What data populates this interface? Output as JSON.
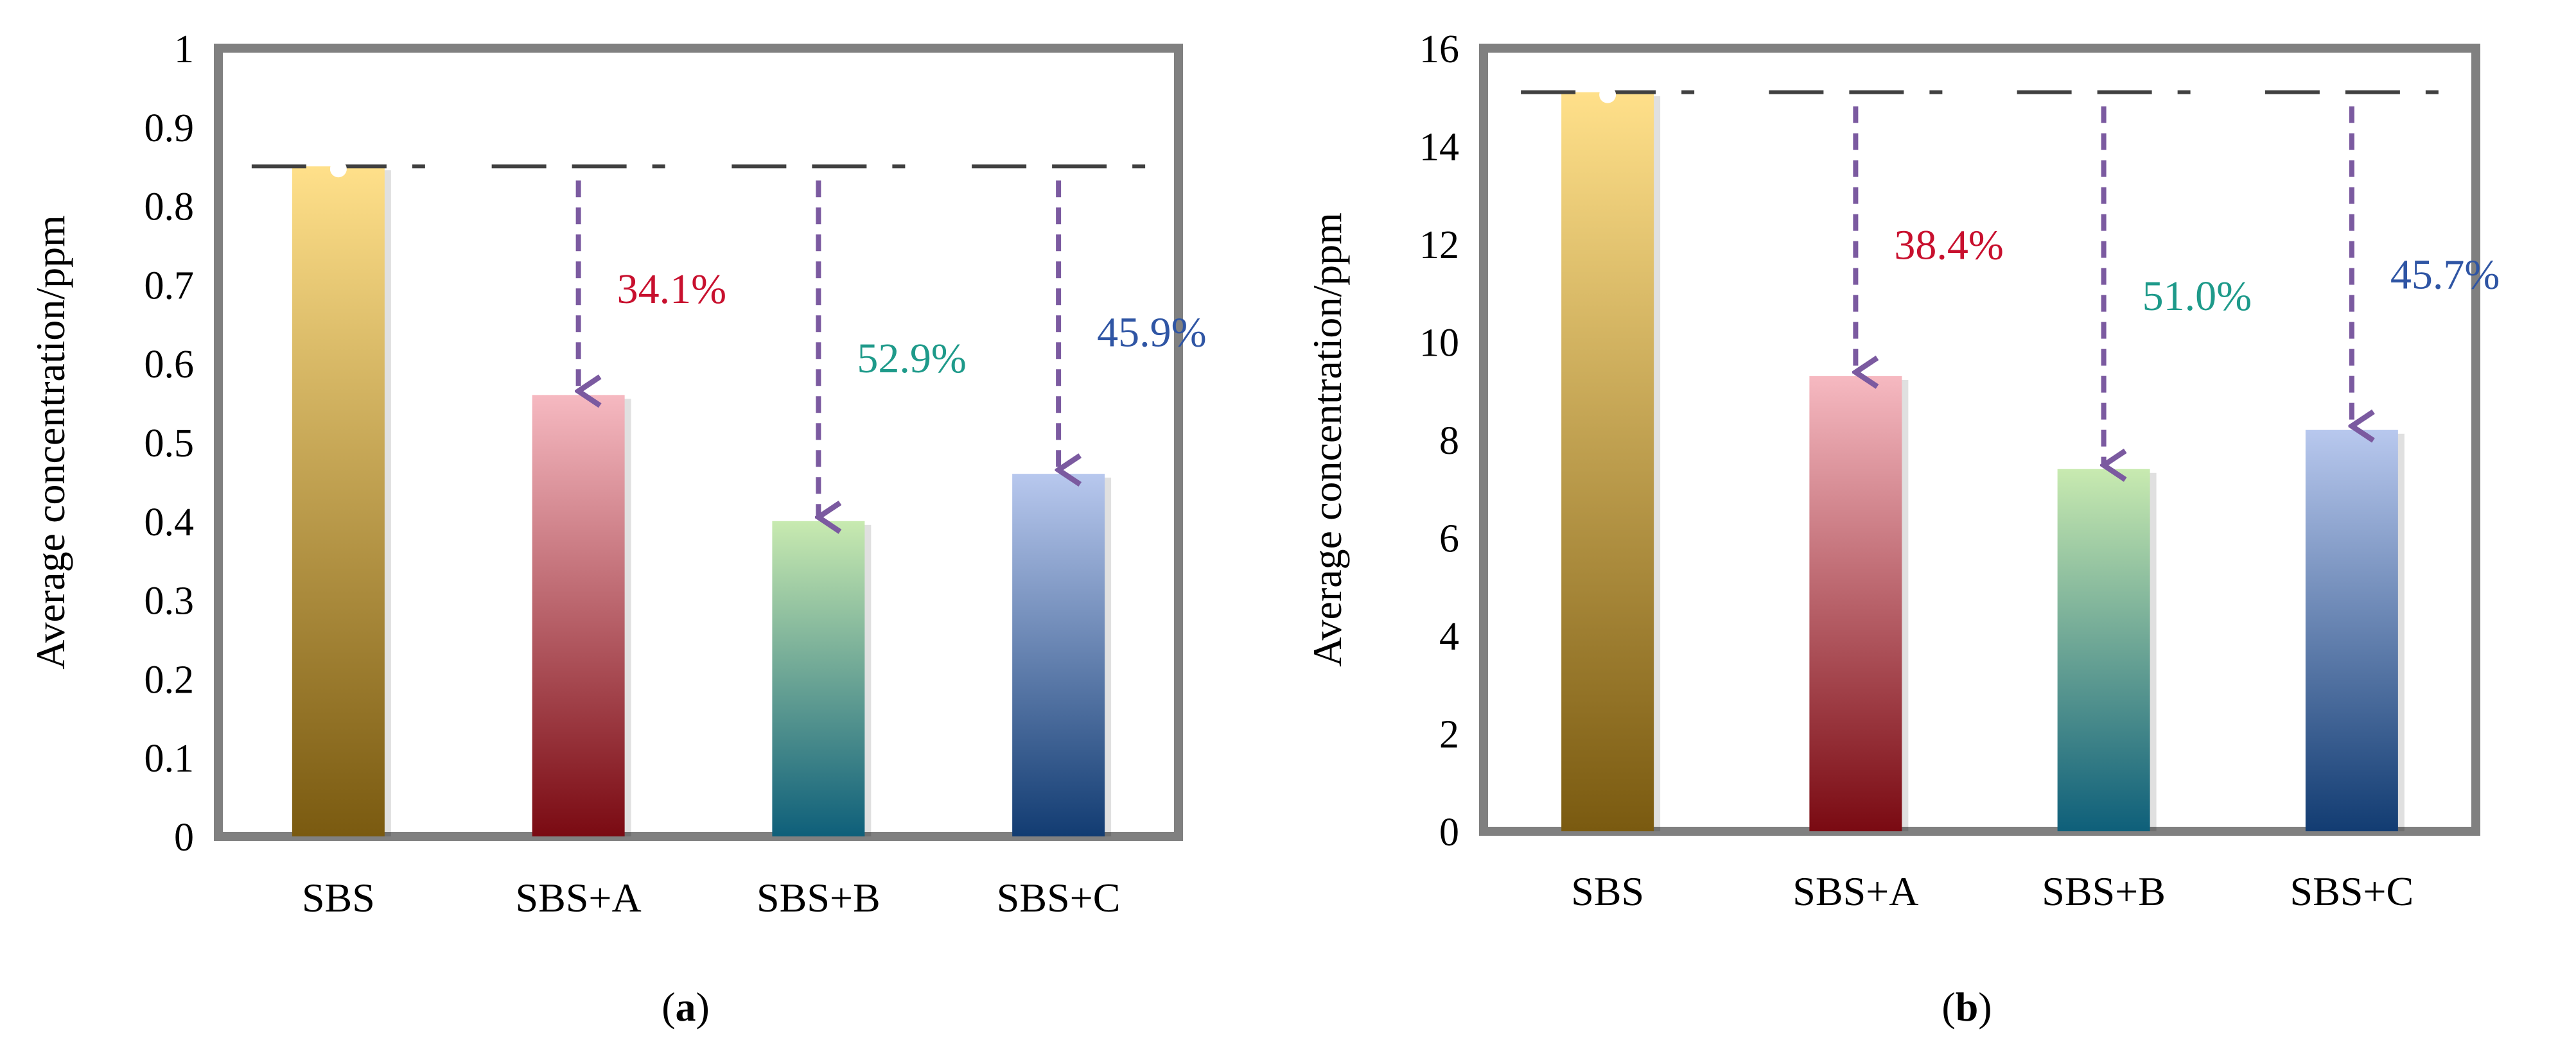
{
  "chart_data": [
    {
      "type": "bar",
      "panel_label": "(a)",
      "panel_letter": "a",
      "ylabel": "Average concentration/ppm",
      "xlabel": "",
      "ylim": [
        0,
        1
      ],
      "yticks": [
        "0",
        "0.1",
        "0.2",
        "0.3",
        "0.4",
        "0.5",
        "0.6",
        "0.7",
        "0.8",
        "0.9",
        "1"
      ],
      "categories": [
        "SBS",
        "SBS+A",
        "SBS+B",
        "SBS+C"
      ],
      "values": [
        0.85,
        0.56,
        0.4,
        0.46
      ],
      "reference_value": 0.85,
      "annotations": [
        {
          "category": "SBS+A",
          "text": "34.1%",
          "color": "#c8102e"
        },
        {
          "category": "SBS+B",
          "text": "52.9%",
          "color": "#1e9a8a"
        },
        {
          "category": "SBS+C",
          "text": "45.9%",
          "color": "#2f55a4"
        }
      ],
      "bar_colors": [
        {
          "top": "#ffe08a",
          "bottom": "#7a5a10"
        },
        {
          "top": "#f6b9c1",
          "bottom": "#7a0a12"
        },
        {
          "top": "#c8eab0",
          "bottom": "#0e5f7a"
        },
        {
          "top": "#b8c8ee",
          "bottom": "#123c72"
        }
      ]
    },
    {
      "type": "bar",
      "panel_label": "(b)",
      "panel_letter": "b",
      "ylabel": "Average concentration/ppm",
      "xlabel": "",
      "ylim": [
        0,
        16
      ],
      "yticks": [
        "0",
        "2",
        "4",
        "6",
        "8",
        "10",
        "12",
        "14",
        "16"
      ],
      "categories": [
        "SBS",
        "SBS+A",
        "SBS+B",
        "SBS+C"
      ],
      "values": [
        15.1,
        9.3,
        7.4,
        8.2
      ],
      "reference_value": 15.1,
      "annotations": [
        {
          "category": "SBS+A",
          "text": "38.4%",
          "color": "#c8102e"
        },
        {
          "category": "SBS+B",
          "text": "51.0%",
          "color": "#1e9a8a"
        },
        {
          "category": "SBS+C",
          "text": "45.7%",
          "color": "#2f55a4"
        }
      ],
      "bar_colors": [
        {
          "top": "#ffe08a",
          "bottom": "#7a5a10"
        },
        {
          "top": "#f6b9c1",
          "bottom": "#7a0a12"
        },
        {
          "top": "#c8eab0",
          "bottom": "#0e5f7a"
        },
        {
          "top": "#b8c8ee",
          "bottom": "#123c72"
        }
      ]
    }
  ],
  "style": {
    "frame_color": "#808080",
    "arrow_color": "#7b5aa0",
    "dash_color": "#404040"
  }
}
